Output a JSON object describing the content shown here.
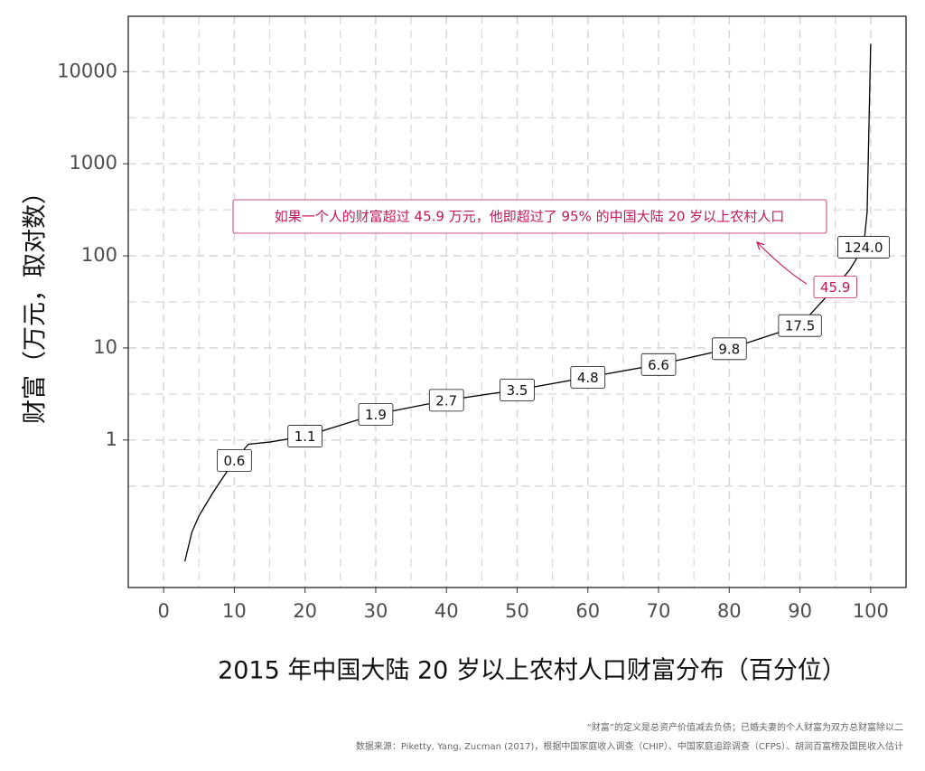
{
  "chart_data": {
    "type": "line",
    "x_label": "2015 年中国大陆 20 岁以上农村人口财富分布（百分位）",
    "y_label": "财富（万元，取对数）",
    "log_y": true,
    "grid": true,
    "xlim": [
      -5,
      105
    ],
    "ylim": [
      0.025,
      40000
    ],
    "xticks": [
      0,
      10,
      20,
      30,
      40,
      50,
      60,
      70,
      80,
      90,
      100
    ],
    "yticks": [
      1,
      10,
      100,
      1000,
      10000
    ],
    "series": [
      {
        "color": "#000000",
        "x": [
          3,
          4,
          5,
          7,
          10,
          12,
          15,
          20,
          30,
          40,
          50,
          60,
          70,
          80,
          90,
          95,
          97,
          99,
          99.5,
          100
        ],
        "values": [
          0.048,
          0.1,
          0.15,
          0.27,
          0.6,
          0.9,
          0.95,
          1.1,
          1.9,
          2.7,
          3.5,
          4.8,
          6.6,
          9.8,
          17.5,
          45.9,
          70,
          124,
          300,
          20000
        ]
      }
    ],
    "label_points": {
      "x": [
        10,
        20,
        30,
        40,
        50,
        60,
        70,
        80,
        90,
        95,
        99
      ],
      "values": [
        0.6,
        1.1,
        1.9,
        2.7,
        3.5,
        4.8,
        6.6,
        9.8,
        17.5,
        45.9,
        124
      ],
      "value_labels": [
        "0.6",
        "1.1",
        "1.9",
        "2.7",
        "3.5",
        "4.8",
        "6.6",
        "9.8",
        "17.5",
        "45.9",
        "124.0"
      ],
      "colors": [
        "#111111",
        "#111111",
        "#111111",
        "#111111",
        "#111111",
        "#111111",
        "#111111",
        "#111111",
        "#111111",
        "#c2185b",
        "#111111"
      ]
    },
    "annotation": {
      "text": "如果一个人的财富超过 45.9 万元，他即超过了 95% 的中国大陆 20 岁以上农村人口",
      "color": "#c2185b"
    },
    "notes": [
      "“财富”的定义是总资产价值减去负债；已婚夫妻的个人财富为双方总财富除以二",
      "数据来源：Piketty, Yang, Zucman (2017)，根据中国家庭收入调查（CHIP）、中国家庭追踪调查（CFPS）、胡润百富榜及国民收入估计"
    ]
  }
}
